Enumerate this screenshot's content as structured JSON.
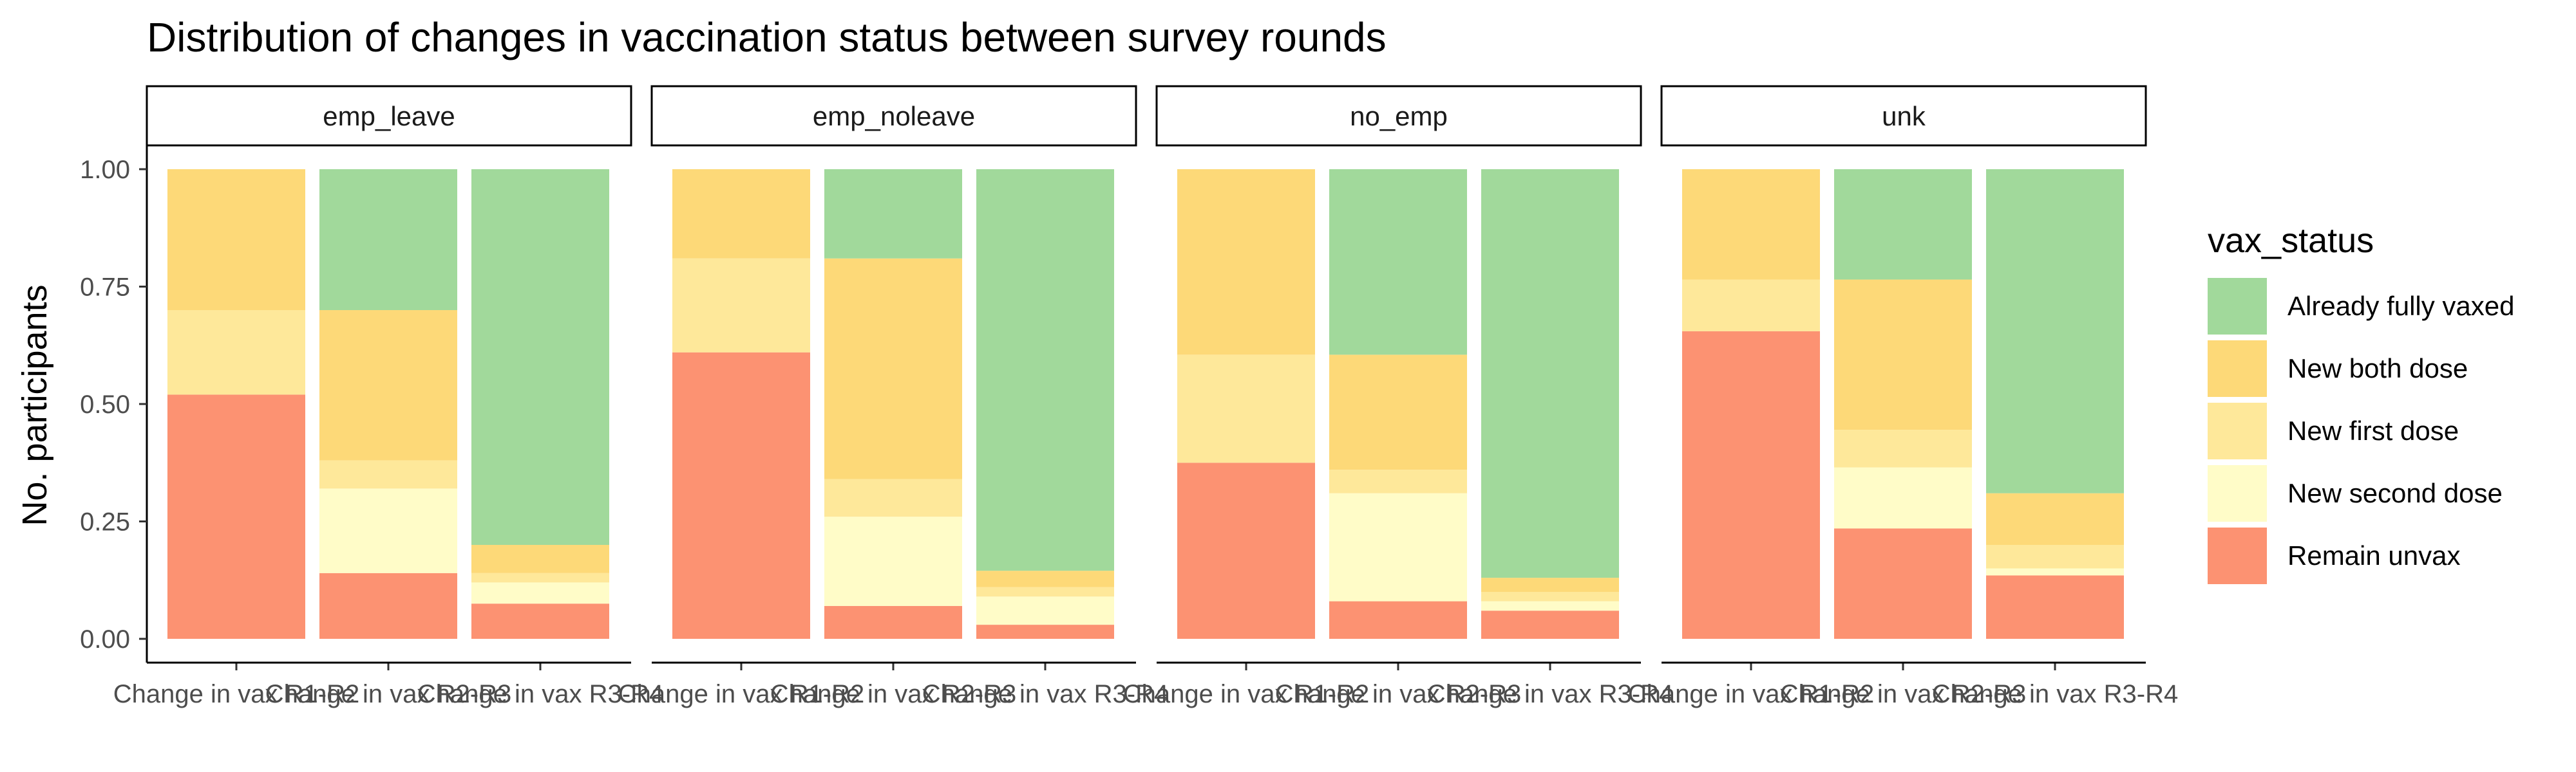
{
  "chart_data": {
    "type": "bar",
    "stacked": true,
    "title": "Distribution of changes in vaccination status between survey rounds",
    "ylabel": "No. participants",
    "xlabel": "",
    "ylim": [
      0,
      1
    ],
    "yticks": [
      "0.00",
      "0.25",
      "0.50",
      "0.75",
      "1.00"
    ],
    "categories": [
      "Change in vax R1-R2",
      "Change in vax R2-R3",
      "Change in vax R3-R4"
    ],
    "legend": {
      "title": "vax_status",
      "position": "right",
      "items": [
        {
          "name": "Already fully vaxed",
          "color": "#A1D99B"
        },
        {
          "name": "New both dose",
          "color": "#FDD978"
        },
        {
          "name": "New first dose",
          "color": "#FEE89A"
        },
        {
          "name": "New second dose",
          "color": "#FFFCC8"
        },
        {
          "name": "Remain unvax",
          "color": "#FC9272"
        }
      ]
    },
    "panels": [
      {
        "name": "emp_leave",
        "bars": [
          {
            "Remain unvax": 0.52,
            "New second dose": 0.0,
            "New first dose": 0.18,
            "New both dose": 0.3,
            "Already fully vaxed": 0.0
          },
          {
            "Remain unvax": 0.14,
            "New second dose": 0.18,
            "New first dose": 0.06,
            "New both dose": 0.32,
            "Already fully vaxed": 0.3
          },
          {
            "Remain unvax": 0.075,
            "New second dose": 0.045,
            "New first dose": 0.02,
            "New both dose": 0.06,
            "Already fully vaxed": 0.8
          }
        ]
      },
      {
        "name": "emp_noleave",
        "bars": [
          {
            "Remain unvax": 0.61,
            "New second dose": 0.0,
            "New first dose": 0.2,
            "New both dose": 0.19,
            "Already fully vaxed": 0.0
          },
          {
            "Remain unvax": 0.07,
            "New second dose": 0.19,
            "New first dose": 0.08,
            "New both dose": 0.47,
            "Already fully vaxed": 0.19
          },
          {
            "Remain unvax": 0.03,
            "New second dose": 0.06,
            "New first dose": 0.02,
            "New both dose": 0.035,
            "Already fully vaxed": 0.855
          }
        ]
      },
      {
        "name": "no_emp",
        "bars": [
          {
            "Remain unvax": 0.375,
            "New second dose": 0.0,
            "New first dose": 0.23,
            "New both dose": 0.395,
            "Already fully vaxed": 0.0
          },
          {
            "Remain unvax": 0.08,
            "New second dose": 0.23,
            "New first dose": 0.05,
            "New both dose": 0.245,
            "Already fully vaxed": 0.395
          },
          {
            "Remain unvax": 0.06,
            "New second dose": 0.02,
            "New first dose": 0.02,
            "New both dose": 0.03,
            "Already fully vaxed": 0.87
          }
        ]
      },
      {
        "name": "unk",
        "bars": [
          {
            "Remain unvax": 0.655,
            "New second dose": 0.0,
            "New first dose": 0.11,
            "New both dose": 0.235,
            "Already fully vaxed": 0.0
          },
          {
            "Remain unvax": 0.235,
            "New second dose": 0.13,
            "New first dose": 0.08,
            "New both dose": 0.32,
            "Already fully vaxed": 0.235
          },
          {
            "Remain unvax": 0.135,
            "New second dose": 0.015,
            "New first dose": 0.05,
            "New both dose": 0.11,
            "Already fully vaxed": 0.69
          }
        ]
      }
    ]
  }
}
